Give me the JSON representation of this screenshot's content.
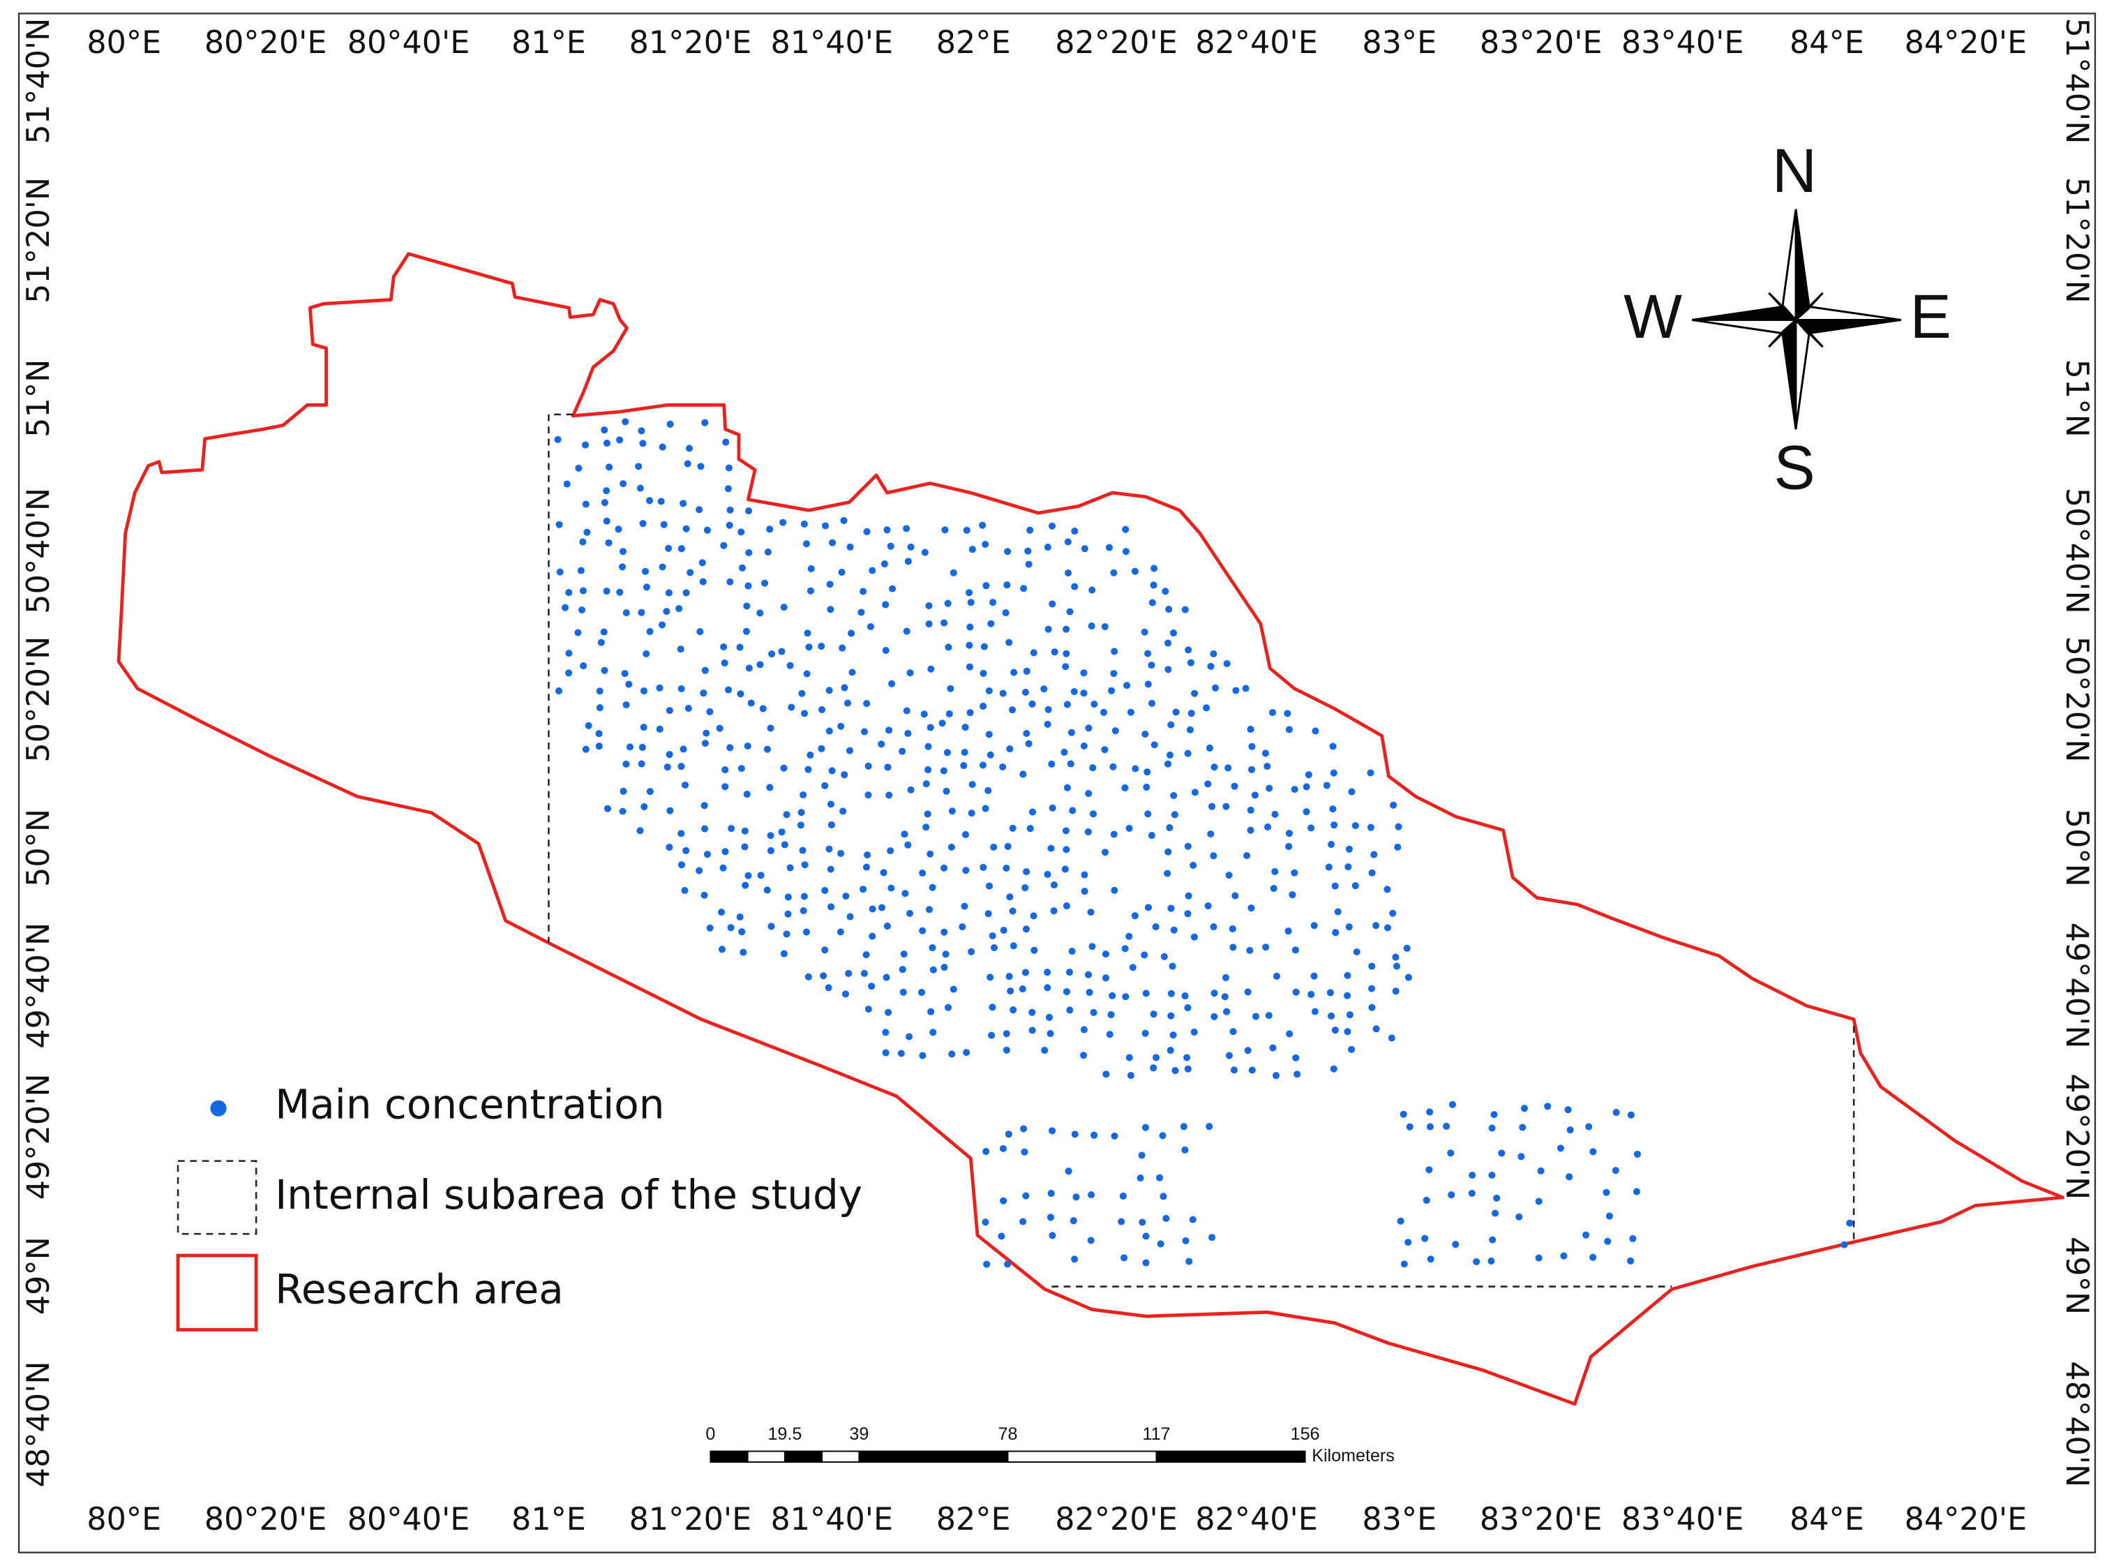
{
  "map": {
    "lon_labels": [
      "80°E",
      "80°20'E",
      "80°40'E",
      "81°E",
      "81°20'E",
      "81°40'E",
      "82°E",
      "82°20'E",
      "82°40'E",
      "83°E",
      "83°20'E",
      "83°40'E",
      "84°E",
      "84°20'E"
    ],
    "lat_labels": [
      "51°40'N",
      "51°20'N",
      "51°N",
      "50°40'N",
      "50°20'N",
      "50°N",
      "49°40'N",
      "49°20'N",
      "49°N",
      "48°40'N"
    ],
    "compass": {
      "n": "N",
      "e": "E",
      "s": "S",
      "w": "W"
    },
    "legend": [
      "Main concentration",
      "Internal subarea of the study",
      "Research area"
    ],
    "scale_bar": {
      "ticks": [
        0,
        19.5,
        39,
        78,
        117,
        156
      ],
      "unit": "Kilometers"
    }
  }
}
